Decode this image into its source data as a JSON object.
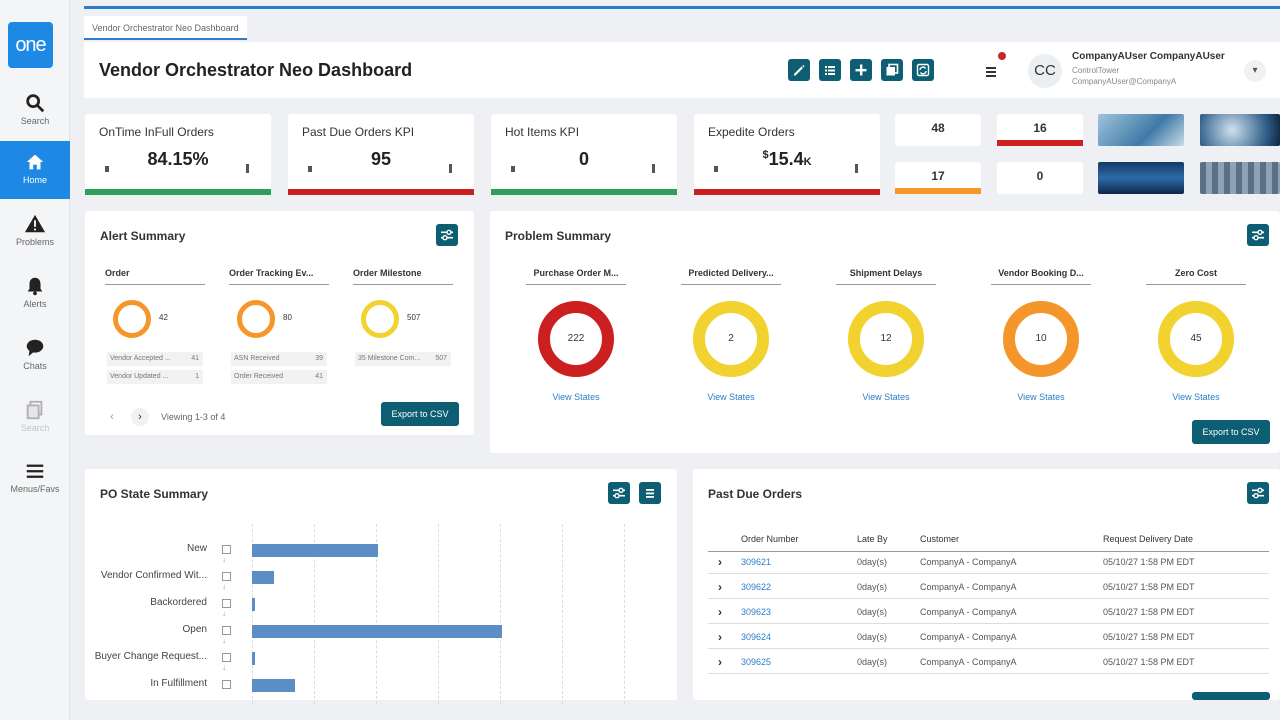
{
  "sidebar": {
    "logo": "one",
    "items": [
      {
        "label": "Search",
        "icon": "search-icon"
      },
      {
        "label": "Home",
        "icon": "home-icon"
      },
      {
        "label": "Problems",
        "icon": "warning-icon"
      },
      {
        "label": "Alerts",
        "icon": "bell-icon"
      },
      {
        "label": "Chats",
        "icon": "chat-icon"
      },
      {
        "label": "Search",
        "icon": "copy-icon"
      },
      {
        "label": "Menus/Favs",
        "icon": "hamburger-icon"
      }
    ]
  },
  "tab": {
    "label": "Vendor Orchestrator Neo Dashboard"
  },
  "header": {
    "title": "Vendor Orchestrator Neo Dashboard",
    "user": {
      "initials": "CC",
      "name": "CompanyAUser CompanyAUser",
      "org": "ControlTower",
      "email": "CompanyAUser@CompanyA"
    }
  },
  "kpis": [
    {
      "title": "OnTime InFull Orders",
      "value": "84.15%",
      "color": "#2e9e5b"
    },
    {
      "title": "Past Due Orders KPI",
      "value": "95",
      "color": "#cc1f1f"
    },
    {
      "title": "Hot Items KPI",
      "value": "0",
      "color": "#2e9e5b"
    },
    {
      "title": "Expedite Orders",
      "value_prefix": "$",
      "value": "15.4",
      "value_suffix": "K",
      "color": "#cc1f1f"
    }
  ],
  "mini_kpis": [
    {
      "value": "48",
      "color": ""
    },
    {
      "value": "16",
      "color": "#cc1f1f"
    },
    {
      "value": "17",
      "color": "#f5962a"
    },
    {
      "value": "0",
      "color": ""
    }
  ],
  "alert_summary": {
    "title": "Alert Summary",
    "columns": [
      {
        "header": "Order",
        "count": "42",
        "ring_color": "#f5962a",
        "rows": [
          {
            "label": "Vendor Accepted ...",
            "value": "41"
          },
          {
            "label": "Vendor Updated ...",
            "value": "1"
          }
        ]
      },
      {
        "header": "Order Tracking Ev...",
        "count": "80",
        "ring_color": "#f5962a",
        "rows": [
          {
            "label": "ASN Received",
            "value": "39"
          },
          {
            "label": "Order Received",
            "value": "41"
          }
        ]
      },
      {
        "header": "Order Milestone",
        "count": "507",
        "ring_color": "#f2d22e",
        "rows": [
          {
            "label": "35 Milestone Com...",
            "value": "507"
          }
        ]
      }
    ],
    "viewing": "Viewing 1-3 of 4",
    "export_label": "Export to CSV"
  },
  "problem_summary": {
    "title": "Problem Summary",
    "columns": [
      {
        "header": "Purchase Order M...",
        "count": "222",
        "ring_color": "#cc1f1f",
        "link": "View States"
      },
      {
        "header": "Predicted Delivery...",
        "count": "2",
        "ring_color": "#f2d22e",
        "link": "View States"
      },
      {
        "header": "Shipment Delays",
        "count": "12",
        "ring_color": "#f2d22e",
        "link": "View States"
      },
      {
        "header": "Vendor Booking D...",
        "count": "10",
        "ring_color": "#f5962a",
        "link": "View States"
      },
      {
        "header": "Zero Cost",
        "count": "45",
        "ring_color": "#f2d22e",
        "link": "View States"
      }
    ],
    "export_label": "Export to CSV"
  },
  "po_state": {
    "title": "PO State Summary",
    "rows": [
      {
        "label": "New",
        "value": 0.505
      },
      {
        "label": "Vendor Confirmed Wit...",
        "value": 0.088
      },
      {
        "label": "Backordered",
        "value": 0.012
      },
      {
        "label": "Open",
        "value": 1.0
      },
      {
        "label": "Buyer Change Request...",
        "value": 0.012
      },
      {
        "label": "In Fulfillment",
        "value": 0.17
      }
    ]
  },
  "past_due": {
    "title": "Past Due Orders",
    "columns": [
      "Order Number",
      "Late By",
      "Customer",
      "Request Delivery Date"
    ],
    "rows": [
      {
        "order": "309621",
        "late": "0day(s)",
        "customer": "CompanyA - CompanyA",
        "date": "05/10/27 1:58 PM EDT"
      },
      {
        "order": "309622",
        "late": "0day(s)",
        "customer": "CompanyA - CompanyA",
        "date": "05/10/27 1:58 PM EDT"
      },
      {
        "order": "309623",
        "late": "0day(s)",
        "customer": "CompanyA - CompanyA",
        "date": "05/10/27 1:58 PM EDT"
      },
      {
        "order": "309624",
        "late": "0day(s)",
        "customer": "CompanyA - CompanyA",
        "date": "05/10/27 1:58 PM EDT"
      },
      {
        "order": "309625",
        "late": "0day(s)",
        "customer": "CompanyA - CompanyA",
        "date": "05/10/27 1:58 PM EDT"
      }
    ]
  }
}
